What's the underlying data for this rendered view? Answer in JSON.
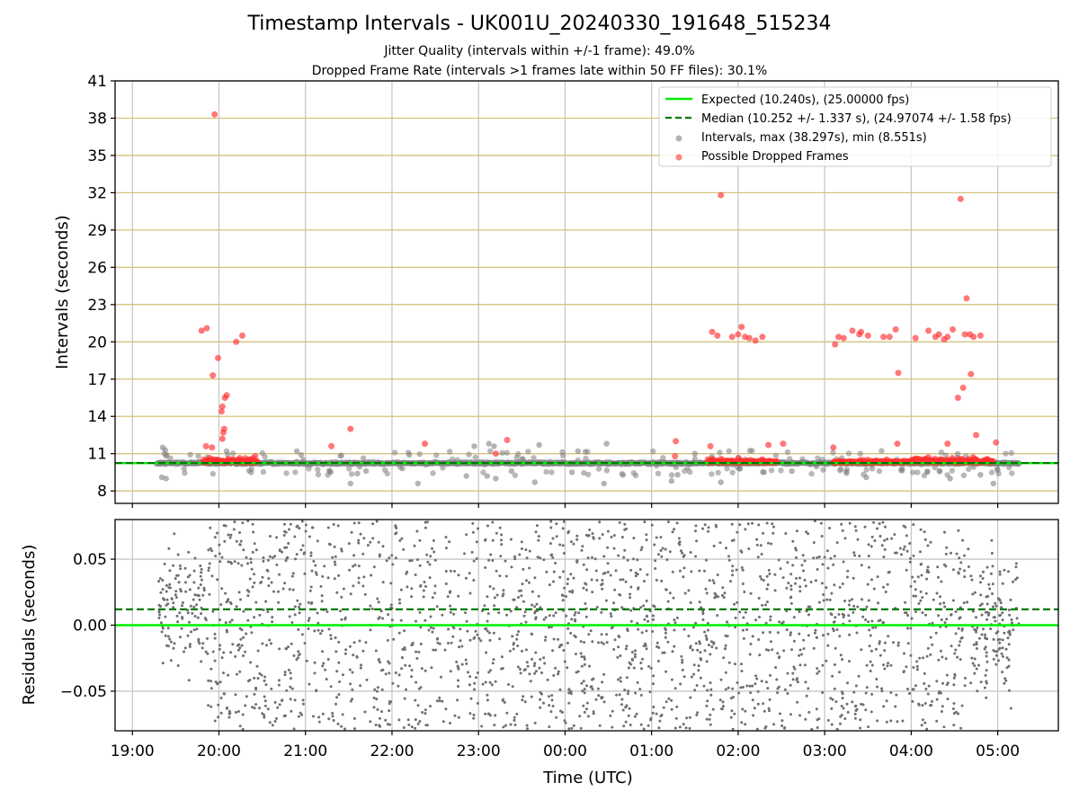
{
  "chart_data": {
    "title": "Timestamp Intervals - UK001U_20240330_191648_515234",
    "subtitles": [
      "Jitter Quality (intervals within +/-1 frame): 49.0%",
      "Dropped Frame Rate (intervals >1 frames late within 50 FF files): 30.1%"
    ],
    "x_axis": {
      "label": "Time (UTC)",
      "ticks": [
        "19:00",
        "20:00",
        "21:00",
        "22:00",
        "23:00",
        "00:00",
        "01:00",
        "02:00",
        "03:00",
        "04:00",
        "05:00"
      ],
      "range_hours": [
        -0.2,
        10.7
      ]
    },
    "upper_panel": {
      "type": "scatter",
      "ylabel": "Intervals (seconds)",
      "ylim": [
        7,
        41
      ],
      "yticks": [
        8,
        11,
        14,
        17,
        20,
        23,
        26,
        29,
        32,
        35,
        38,
        41
      ],
      "horizontal_gridlines": "yes",
      "expected": 10.24,
      "median": 10.252,
      "legend_position": "top-right",
      "legend": [
        {
          "label": "Expected (10.240s), (25.00000 fps)",
          "style": "solid-line",
          "color": "#00ee00"
        },
        {
          "label": "Median (10.252 +/- 1.337 s), (24.97074 +/- 1.58 fps)",
          "style": "dashed-line",
          "color": "#007a00"
        },
        {
          "label": "Intervals, max (38.297s), min (8.551s)",
          "style": "marker",
          "color": "#808080"
        },
        {
          "label": "Possible Dropped Frames",
          "style": "marker",
          "color": "#ff3030"
        }
      ],
      "dropped_frames": [
        [
          0.8,
          20.9
        ],
        [
          0.86,
          21.1
        ],
        [
          0.95,
          38.3
        ],
        [
          0.93,
          17.3
        ],
        [
          0.99,
          18.7
        ],
        [
          1.03,
          14.4
        ],
        [
          1.04,
          14.8
        ],
        [
          1.07,
          15.5
        ],
        [
          1.09,
          15.7
        ],
        [
          1.05,
          12.7
        ],
        [
          1.06,
          13.0
        ],
        [
          1.04,
          12.2
        ],
        [
          0.85,
          11.6
        ],
        [
          0.92,
          11.5
        ],
        [
          1.2,
          20.0
        ],
        [
          1.27,
          20.5
        ],
        [
          1.42,
          10.8
        ],
        [
          2.3,
          11.6
        ],
        [
          2.52,
          13.0
        ],
        [
          3.38,
          11.8
        ],
        [
          4.2,
          11.0
        ],
        [
          4.33,
          12.1
        ],
        [
          6.28,
          12.0
        ],
        [
          6.27,
          10.8
        ],
        [
          6.68,
          11.6
        ],
        [
          6.7,
          20.8
        ],
        [
          6.76,
          20.5
        ],
        [
          6.8,
          31.8
        ],
        [
          6.93,
          20.4
        ],
        [
          7.0,
          20.6
        ],
        [
          7.04,
          21.2
        ],
        [
          7.08,
          20.4
        ],
        [
          7.13,
          20.3
        ],
        [
          7.2,
          20.1
        ],
        [
          7.28,
          20.4
        ],
        [
          7.35,
          11.7
        ],
        [
          7.52,
          11.8
        ],
        [
          8.12,
          19.8
        ],
        [
          8.16,
          20.4
        ],
        [
          8.22,
          20.3
        ],
        [
          8.1,
          11.5
        ],
        [
          8.32,
          20.9
        ],
        [
          8.4,
          20.6
        ],
        [
          8.42,
          20.8
        ],
        [
          8.5,
          20.5
        ],
        [
          8.68,
          20.4
        ],
        [
          8.75,
          20.4
        ],
        [
          8.82,
          21.0
        ],
        [
          8.85,
          17.5
        ],
        [
          8.84,
          11.8
        ],
        [
          9.05,
          20.3
        ],
        [
          9.2,
          20.9
        ],
        [
          9.28,
          20.4
        ],
        [
          9.32,
          20.6
        ],
        [
          9.38,
          20.2
        ],
        [
          9.42,
          20.4
        ],
        [
          9.48,
          21.0
        ],
        [
          9.54,
          15.5
        ],
        [
          9.57,
          31.5
        ],
        [
          9.6,
          16.3
        ],
        [
          9.62,
          20.6
        ],
        [
          9.64,
          23.5
        ],
        [
          9.69,
          17.4
        ],
        [
          9.68,
          20.6
        ],
        [
          9.72,
          20.4
        ],
        [
          9.75,
          12.5
        ],
        [
          9.8,
          20.5
        ],
        [
          9.42,
          11.8
        ],
        [
          9.98,
          11.9
        ]
      ],
      "outlier_intervals": [
        [
          0.35,
          11.5
        ],
        [
          0.38,
          11.3
        ],
        [
          0.34,
          9.1
        ],
        [
          0.39,
          9.0
        ],
        [
          1.9,
          11.2
        ],
        [
          1.95,
          10.9
        ],
        [
          2.52,
          8.6
        ],
        [
          2.6,
          9.4
        ],
        [
          2.7,
          9.6
        ],
        [
          3.3,
          8.6
        ],
        [
          3.2,
          10.9
        ],
        [
          3.95,
          11.6
        ],
        [
          3.86,
          9.2
        ],
        [
          4.12,
          11.8
        ],
        [
          4.18,
          11.6
        ],
        [
          4.1,
          9.2
        ],
        [
          4.2,
          9.0
        ],
        [
          4.38,
          9.6
        ],
        [
          4.65,
          8.7
        ],
        [
          4.7,
          11.7
        ],
        [
          5.15,
          11.2
        ],
        [
          5.08,
          9.5
        ],
        [
          5.48,
          11.8
        ],
        [
          5.45,
          8.6
        ],
        [
          6.23,
          8.8
        ],
        [
          6.3,
          9.3
        ],
        [
          6.5,
          11.0
        ],
        [
          6.8,
          8.7
        ],
        [
          7.3,
          9.5
        ],
        [
          7.62,
          9.6
        ],
        [
          8.48,
          9.1
        ],
        [
          8.55,
          9.8
        ],
        [
          9.45,
          9.0
        ],
        [
          9.8,
          9.3
        ],
        [
          9.95,
          8.6
        ],
        [
          10.0,
          9.7
        ]
      ]
    },
    "lower_panel": {
      "type": "scatter",
      "ylabel": "Residuals (seconds)",
      "ylim": [
        -0.08,
        0.08
      ],
      "yticks": [
        "−0.05",
        "0.00",
        "0.05"
      ],
      "ytick_values": [
        -0.05,
        0.0,
        0.05
      ],
      "expected_residual": 0.0,
      "median_residual": 0.012
    },
    "colors": {
      "expected": "#00ee00",
      "median": "#007a00",
      "intervals": "#808080",
      "dropped": "#ff3030",
      "hgrid_upper": "#d4c37e",
      "grid": "#c8c8c8",
      "residual_points": "#6f6f6f"
    }
  }
}
